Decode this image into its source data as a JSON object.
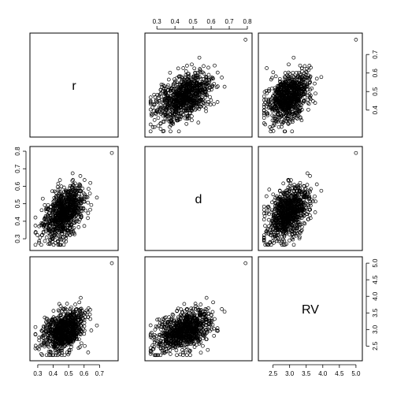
{
  "chart_data": {
    "type": "scatter",
    "subtype": "pairs-matrix",
    "title": "",
    "variables": [
      {
        "name": "r",
        "range": [
          0.28,
          0.79
        ],
        "ticks": [
          0.3,
          0.4,
          0.5,
          0.6,
          0.7
        ],
        "extra_ticks": [
          0.8
        ]
      },
      {
        "name": "d",
        "range": [
          0.26,
          0.8
        ],
        "ticks": [
          0.3,
          0.4,
          0.5,
          0.6,
          0.7,
          0.8
        ]
      },
      {
        "name": "RV",
        "range": [
          2.2,
          5.05
        ],
        "ticks": [
          2.5,
          3.0,
          3.5,
          4.0,
          4.5,
          5.0
        ]
      }
    ],
    "top_axis_ticks": [
      0.3,
      0.4,
      0.5,
      0.6,
      0.7,
      0.8
    ],
    "bottom_left_axis_ticks": [
      0.3,
      0.4,
      0.5,
      0.6,
      0.7
    ],
    "bottom_right_axis_ticks": [
      2.5,
      3.0,
      3.5,
      4.0,
      4.5,
      5.0
    ],
    "left_axis_ticks_row2": [
      0.3,
      0.4,
      0.5,
      0.6,
      0.7,
      0.8
    ],
    "right_axis_ticks_row1": [
      0.4,
      0.5,
      0.6,
      0.7
    ],
    "right_axis_ticks_row3": [
      2.5,
      3.0,
      3.5,
      4.0,
      4.5,
      5.0
    ],
    "sample": {
      "n": 900,
      "means": [
        0.47,
        0.45,
        2.95
      ],
      "sds": [
        0.065,
        0.075,
        0.3
      ],
      "correlations": {
        "r_d": 0.45,
        "r_RV": 0.35,
        "d_RV": 0.4
      }
    },
    "outlier": {
      "r": 0.78,
      "d": 0.79,
      "RV": 5.0
    },
    "grid": false,
    "legend": "none"
  }
}
